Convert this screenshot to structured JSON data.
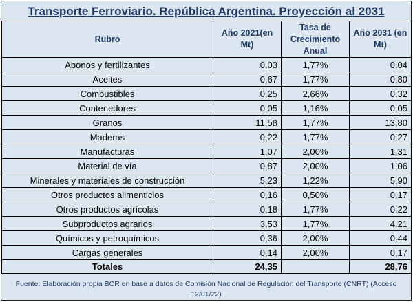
{
  "title": "Transporte Ferroviario. República Argentina. Proyección al 2031",
  "headers": {
    "rubro": "Rubro",
    "anio2021": "Año 2021(en Mt)",
    "tasa": "Tasa de Crecimiento Anual",
    "anio2031": "Año 2031 (en Mt)"
  },
  "rows": [
    {
      "rubro": "Abonos y fertilizantes",
      "v2021": "0,03",
      "tasa": "1,77%",
      "v2031": "0,04"
    },
    {
      "rubro": "Aceites",
      "v2021": "0,67",
      "tasa": "1,77%",
      "v2031": "0,80"
    },
    {
      "rubro": "Combustibles",
      "v2021": "0,25",
      "tasa": "2,66%",
      "v2031": "0,32"
    },
    {
      "rubro": "Contenedores",
      "v2021": "0,05",
      "tasa": "1,16%",
      "v2031": "0,05"
    },
    {
      "rubro": "Granos",
      "v2021": "11,58",
      "tasa": "1,77%",
      "v2031": "13,80"
    },
    {
      "rubro": "Maderas",
      "v2021": "0,22",
      "tasa": "1,77%",
      "v2031": "0,27"
    },
    {
      "rubro": "Manufacturas",
      "v2021": "1,07",
      "tasa": "2,00%",
      "v2031": "1,31"
    },
    {
      "rubro": "Material de vía",
      "v2021": "0,87",
      "tasa": "2,00%",
      "v2031": "1,06"
    },
    {
      "rubro": "Minerales y materiales de construcción",
      "v2021": "5,23",
      "tasa": "1,22%",
      "v2031": "5,90"
    },
    {
      "rubro": "Otros productos alimenticios",
      "v2021": "0,16",
      "tasa": "0,50%",
      "v2031": "0,17"
    },
    {
      "rubro": "Otros productos agrícolas",
      "v2021": "0,18",
      "tasa": "1,77%",
      "v2031": "0,22"
    },
    {
      "rubro": "Subproductos agrarios",
      "v2021": "3,53",
      "tasa": "1,77%",
      "v2031": "4,21"
    },
    {
      "rubro": "Químicos y petroquímicos",
      "v2021": "0,36",
      "tasa": "2,00%",
      "v2031": "0,44"
    },
    {
      "rubro": "Cargas generales",
      "v2021": "0,14",
      "tasa": "2,00%",
      "v2031": "0,17"
    }
  ],
  "totals": {
    "label": "Totales",
    "v2021": "24,35",
    "tasa": "",
    "v2031": "28,76"
  },
  "source": "Fuente: Elaboración propia BCR en base a datos de Comisión Nacional de Regulación del Transporte (CNRT) (Acceso 12/01/22)"
}
